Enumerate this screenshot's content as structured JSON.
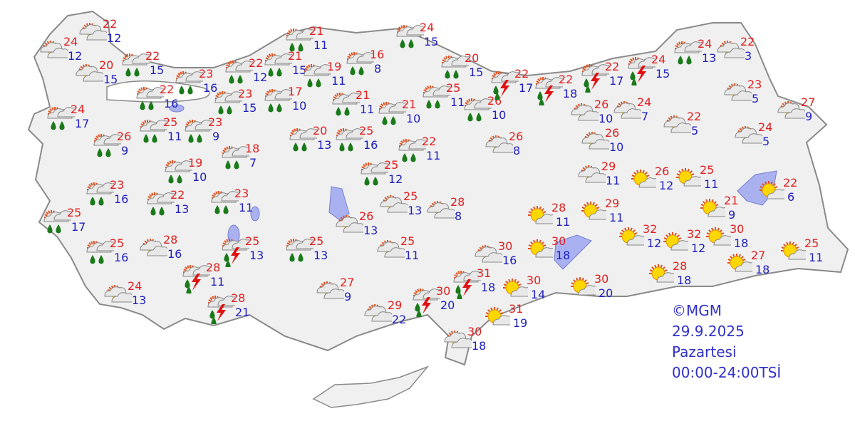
{
  "map": {
    "land_color": "#f0f0f0",
    "border_color": "#8a8a8a",
    "water_color": "#a9b1f0"
  },
  "legend": {
    "copyright": "©MGM",
    "date": "29.9.2025",
    "weekday": "Pazartesi",
    "period": "00:00-24:00TSİ"
  },
  "icon_types": {
    "rain": "partly-cloudy-rain-icon",
    "thunder": "thunderstorm-icon",
    "cloudy": "partly-cloudy-icon",
    "sunny": "mostly-sunny-icon"
  },
  "colors": {
    "max": "#e02020",
    "min": "#2020c0",
    "sun": "#ffd700",
    "rain": "#1a7a1a",
    "lightning": "#e01010"
  },
  "stations": [
    {
      "icon": "cloudy",
      "max": "24",
      "min": "12"
    },
    {
      "icon": "cloudy",
      "max": "22",
      "min": "12"
    },
    {
      "icon": "cloudy",
      "max": "20",
      "min": "15"
    },
    {
      "icon": "rain",
      "max": "22",
      "min": "15"
    },
    {
      "icon": "rain",
      "max": "23",
      "min": "16"
    },
    {
      "icon": "rain",
      "max": "22",
      "min": "16"
    },
    {
      "icon": "rain",
      "max": "24",
      "min": "17"
    },
    {
      "icon": "rain",
      "max": "26",
      "min": "9"
    },
    {
      "icon": "rain",
      "max": "25",
      "min": "11"
    },
    {
      "icon": "rain",
      "max": "23",
      "min": "9"
    },
    {
      "icon": "rain",
      "max": "22",
      "min": "12"
    },
    {
      "icon": "rain",
      "max": "21",
      "min": "15"
    },
    {
      "icon": "rain",
      "max": "23",
      "min": "15"
    },
    {
      "icon": "rain",
      "max": "17",
      "min": "10"
    },
    {
      "icon": "rain",
      "max": "21",
      "min": "11"
    },
    {
      "icon": "rain",
      "max": "19",
      "min": "11"
    },
    {
      "icon": "rain",
      "max": "16",
      "min": "8"
    },
    {
      "icon": "rain",
      "max": "18",
      "min": "7"
    },
    {
      "icon": "rain",
      "max": "19",
      "min": "10"
    },
    {
      "icon": "rain",
      "max": "24",
      "min": "15"
    },
    {
      "icon": "rain",
      "max": "20",
      "min": "15"
    },
    {
      "icon": "rain",
      "max": "21",
      "min": "11"
    },
    {
      "icon": "rain",
      "max": "21",
      "min": "10"
    },
    {
      "icon": "rain",
      "max": "25",
      "min": "11"
    },
    {
      "icon": "rain",
      "max": "26",
      "min": "10"
    },
    {
      "icon": "thunder",
      "max": "22",
      "min": "17"
    },
    {
      "icon": "thunder",
      "max": "22",
      "min": "18"
    },
    {
      "icon": "thunder",
      "max": "22",
      "min": "17"
    },
    {
      "icon": "thunder",
      "max": "24",
      "min": "15"
    },
    {
      "icon": "rain",
      "max": "24",
      "min": "13"
    },
    {
      "icon": "cloudy",
      "max": "22",
      "min": "3"
    },
    {
      "icon": "cloudy",
      "max": "23",
      "min": "5"
    },
    {
      "icon": "cloudy",
      "max": "27",
      "min": "9"
    },
    {
      "icon": "cloudy",
      "max": "26",
      "min": "10"
    },
    {
      "icon": "cloudy",
      "max": "24",
      "min": "7"
    },
    {
      "icon": "cloudy",
      "max": "22",
      "min": "5"
    },
    {
      "icon": "cloudy",
      "max": "24",
      "min": "5"
    },
    {
      "icon": "cloudy",
      "max": "26",
      "min": "10"
    },
    {
      "icon": "cloudy",
      "max": "26",
      "min": "8"
    },
    {
      "icon": "rain",
      "max": "20",
      "min": "13"
    },
    {
      "icon": "rain",
      "max": "25",
      "min": "16"
    },
    {
      "icon": "rain",
      "max": "22",
      "min": "11"
    },
    {
      "icon": "rain",
      "max": "25",
      "min": "12"
    },
    {
      "icon": "rain",
      "max": "23",
      "min": "16"
    },
    {
      "icon": "rain",
      "max": "22",
      "min": "13"
    },
    {
      "icon": "rain",
      "max": "23",
      "min": "11"
    },
    {
      "icon": "rain",
      "max": "25",
      "min": "17"
    },
    {
      "icon": "rain",
      "max": "25",
      "min": "16"
    },
    {
      "icon": "cloudy",
      "max": "28",
      "min": "16"
    },
    {
      "icon": "thunder",
      "max": "25",
      "min": "13"
    },
    {
      "icon": "rain",
      "max": "25",
      "min": "13"
    },
    {
      "icon": "thunder",
      "max": "28",
      "min": "11"
    },
    {
      "icon": "thunder",
      "max": "28",
      "min": "21"
    },
    {
      "icon": "cloudy",
      "max": "24",
      "min": "13"
    },
    {
      "icon": "cloudy",
      "max": "26",
      "min": "13"
    },
    {
      "icon": "cloudy",
      "max": "25",
      "min": "13"
    },
    {
      "icon": "cloudy",
      "max": "28",
      "min": "8"
    },
    {
      "icon": "cloudy",
      "max": "25",
      "min": "11"
    },
    {
      "icon": "cloudy",
      "max": "27",
      "min": "9"
    },
    {
      "icon": "cloudy",
      "max": "29",
      "min": "22"
    },
    {
      "icon": "thunder",
      "max": "30",
      "min": "20"
    },
    {
      "icon": "thunder",
      "max": "31",
      "min": "18"
    },
    {
      "icon": "cloudy",
      "max": "30",
      "min": "16"
    },
    {
      "icon": "sunny",
      "max": "30",
      "min": "18"
    },
    {
      "icon": "sunny",
      "max": "28",
      "min": "11"
    },
    {
      "icon": "cloudy",
      "max": "29",
      "min": "11"
    },
    {
      "icon": "sunny",
      "max": "29",
      "min": "11"
    },
    {
      "icon": "sunny",
      "max": "26",
      "min": "12"
    },
    {
      "icon": "sunny",
      "max": "25",
      "min": "11"
    },
    {
      "icon": "sunny",
      "max": "21",
      "min": "9"
    },
    {
      "icon": "sunny",
      "max": "22",
      "min": "6"
    },
    {
      "icon": "sunny",
      "max": "32",
      "min": "12"
    },
    {
      "icon": "sunny",
      "max": "32",
      "min": "12"
    },
    {
      "icon": "sunny",
      "max": "30",
      "min": "18"
    },
    {
      "icon": "sunny",
      "max": "28",
      "min": "18"
    },
    {
      "icon": "sunny",
      "max": "27",
      "min": "18"
    },
    {
      "icon": "sunny",
      "max": "25",
      "min": "11"
    },
    {
      "icon": "sunny",
      "max": "30",
      "min": "20"
    },
    {
      "icon": "sunny",
      "max": "30",
      "min": "14"
    },
    {
      "icon": "sunny",
      "max": "31",
      "min": "19"
    },
    {
      "icon": "cloudy",
      "max": "30",
      "min": "18"
    }
  ]
}
